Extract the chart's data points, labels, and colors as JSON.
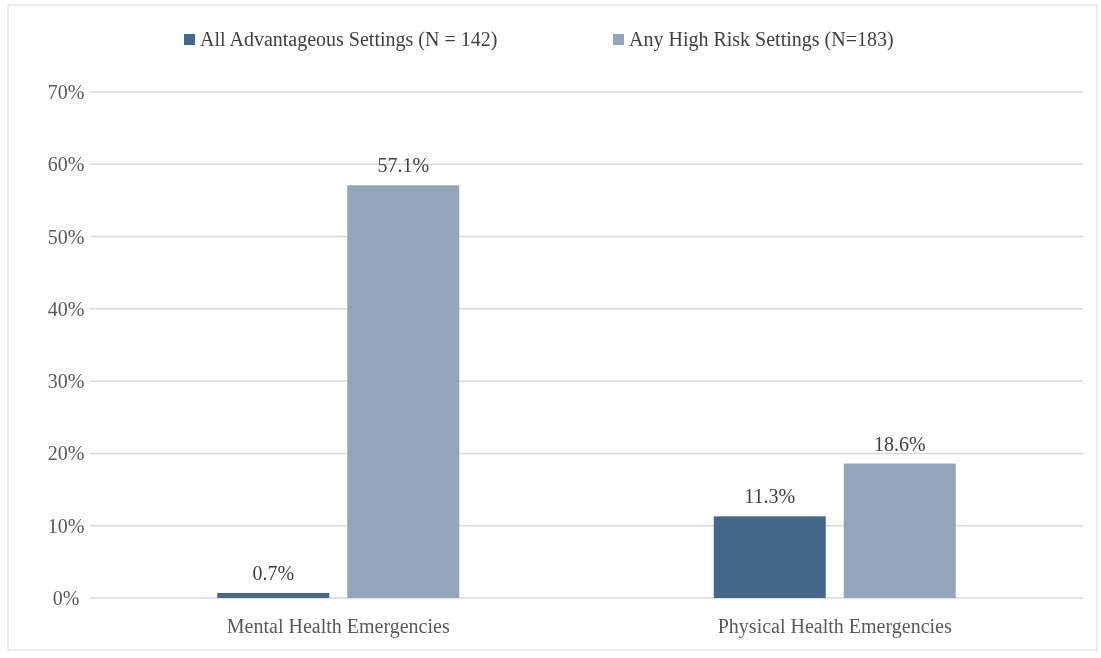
{
  "chart_data": {
    "type": "bar",
    "categories": [
      "Mental Health Emergencies",
      "Physical Health Emergencies"
    ],
    "series": [
      {
        "name": "All Advantageous Settings (N = 142)",
        "color": "#43688c",
        "values": [
          0.7,
          11.3
        ],
        "value_labels": [
          "0.7%",
          "11.3%"
        ]
      },
      {
        "name": "Any High Risk Settings (N=183)",
        "color": "#93a5bc",
        "values": [
          57.1,
          18.6
        ],
        "value_labels": [
          "57.1%",
          "18.6%"
        ]
      }
    ],
    "ylim": [
      0,
      70
    ],
    "yticks": [
      {
        "value": 0,
        "label": "0%"
      },
      {
        "value": 10,
        "label": "10%"
      },
      {
        "value": 20,
        "label": "20%"
      },
      {
        "value": 30,
        "label": "30%"
      },
      {
        "value": 40,
        "label": "40%"
      },
      {
        "value": 50,
        "label": "50%"
      },
      {
        "value": 60,
        "label": "60%"
      },
      {
        "value": 70,
        "label": "70%"
      }
    ],
    "grid": "y",
    "legend": "top"
  }
}
